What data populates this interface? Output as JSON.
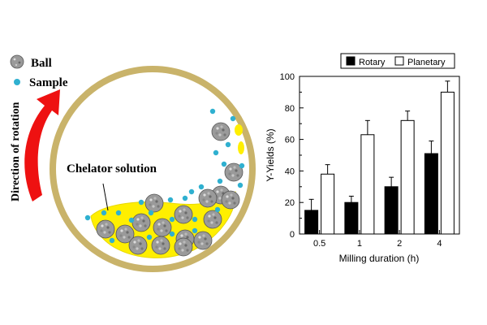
{
  "diagram": {
    "legend_ball": "Ball",
    "legend_sample": "Sample",
    "rotation_label": "Direction of rotation",
    "chelator_label": "Chelator solution",
    "colors": {
      "jar_ring": "#c9b36a",
      "solution": "#ffef00",
      "arrow": "#ee1111",
      "sample": "#2fb0d0",
      "ball": "#9a9a9a"
    }
  },
  "chart_data": {
    "type": "bar",
    "categories": [
      "0.5",
      "1",
      "2",
      "4"
    ],
    "series": [
      {
        "name": "Rotary",
        "values": [
          15,
          20,
          30,
          51
        ],
        "errors": [
          7,
          4,
          6,
          8
        ],
        "fill": "#000000"
      },
      {
        "name": "Planetary",
        "values": [
          38,
          63,
          72,
          90
        ],
        "errors": [
          6,
          9,
          6,
          7
        ],
        "fill": "#ffffff"
      }
    ],
    "xlabel": "Milling duration (h)",
    "ylabel": "Y-Yields (%)",
    "ylim": [
      0,
      100
    ],
    "yticks": [
      "0",
      "20",
      "40",
      "60",
      "80",
      "100"
    ],
    "legend_position": "top",
    "grid": false
  }
}
